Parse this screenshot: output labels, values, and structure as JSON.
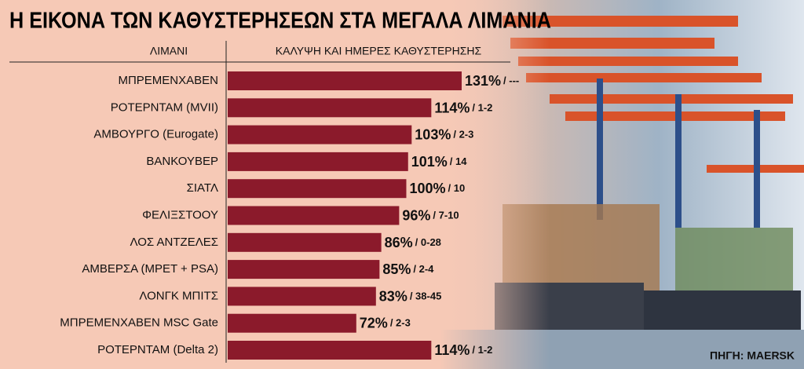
{
  "chart_data": {
    "type": "bar",
    "orientation": "horizontal",
    "title": "Η ΕΙΚΟΝΑ ΤΩΝ ΚΑΘΥΣΤΕΡΗΣΕΩΝ ΣΤΑ ΜΕΓΑΛΑ ΛΙΜΑΝΙΑ",
    "category_header": "ΛΙΜΑΝΙ",
    "value_header": "ΚΑΛΥΨΗ ΚΑΙ ΗΜΕΡΕΣ ΚΑΘΥΣΤΕΡΗΣΗΣ",
    "categories": [
      "ΜΠΡΕΜΕΝΧΑΒΕΝ",
      "ΡΟΤΕΡΝΤΑΜ (MVII)",
      "ΑΜΒΟΥΡΓΟ (Eurogate)",
      "ΒΑΝΚΟΥΒΕΡ",
      "ΣΙΑΤΛ",
      "ΦΕΛΙΞΣΤΟΟΥ",
      "ΛΟΣ ΑΝΤΖΕΛΕΣ",
      "ΑΜΒΕΡΣΑ (ΜΡΕΤ + PSA)",
      "ΛΟΝΓΚ ΜΠΙΤΣ",
      "ΜΠΡΕΜΕΝΧΑΒΕΝ MSC Gate",
      "ΡΟΤΕΡΝΤΑΜ  (Delta 2)"
    ],
    "values": [
      131,
      114,
      103,
      101,
      100,
      96,
      86,
      85,
      83,
      72,
      114
    ],
    "value_labels": [
      "131%",
      "114%",
      "103%",
      "101%",
      "100%",
      "96%",
      "86%",
      "85%",
      "83%",
      "72%",
      "114%"
    ],
    "delays": [
      "/ ---",
      "/ 1-2",
      "/ 2-3",
      "/ 14",
      "/ 10",
      "/ 7-10",
      "/ 0-28",
      "/ 2-4",
      "/ 38-45",
      "/ 2-3",
      "/ 1-2"
    ],
    "color": "#8b1a2b",
    "source": "ΠΗΓΗ: MAERSK"
  }
}
